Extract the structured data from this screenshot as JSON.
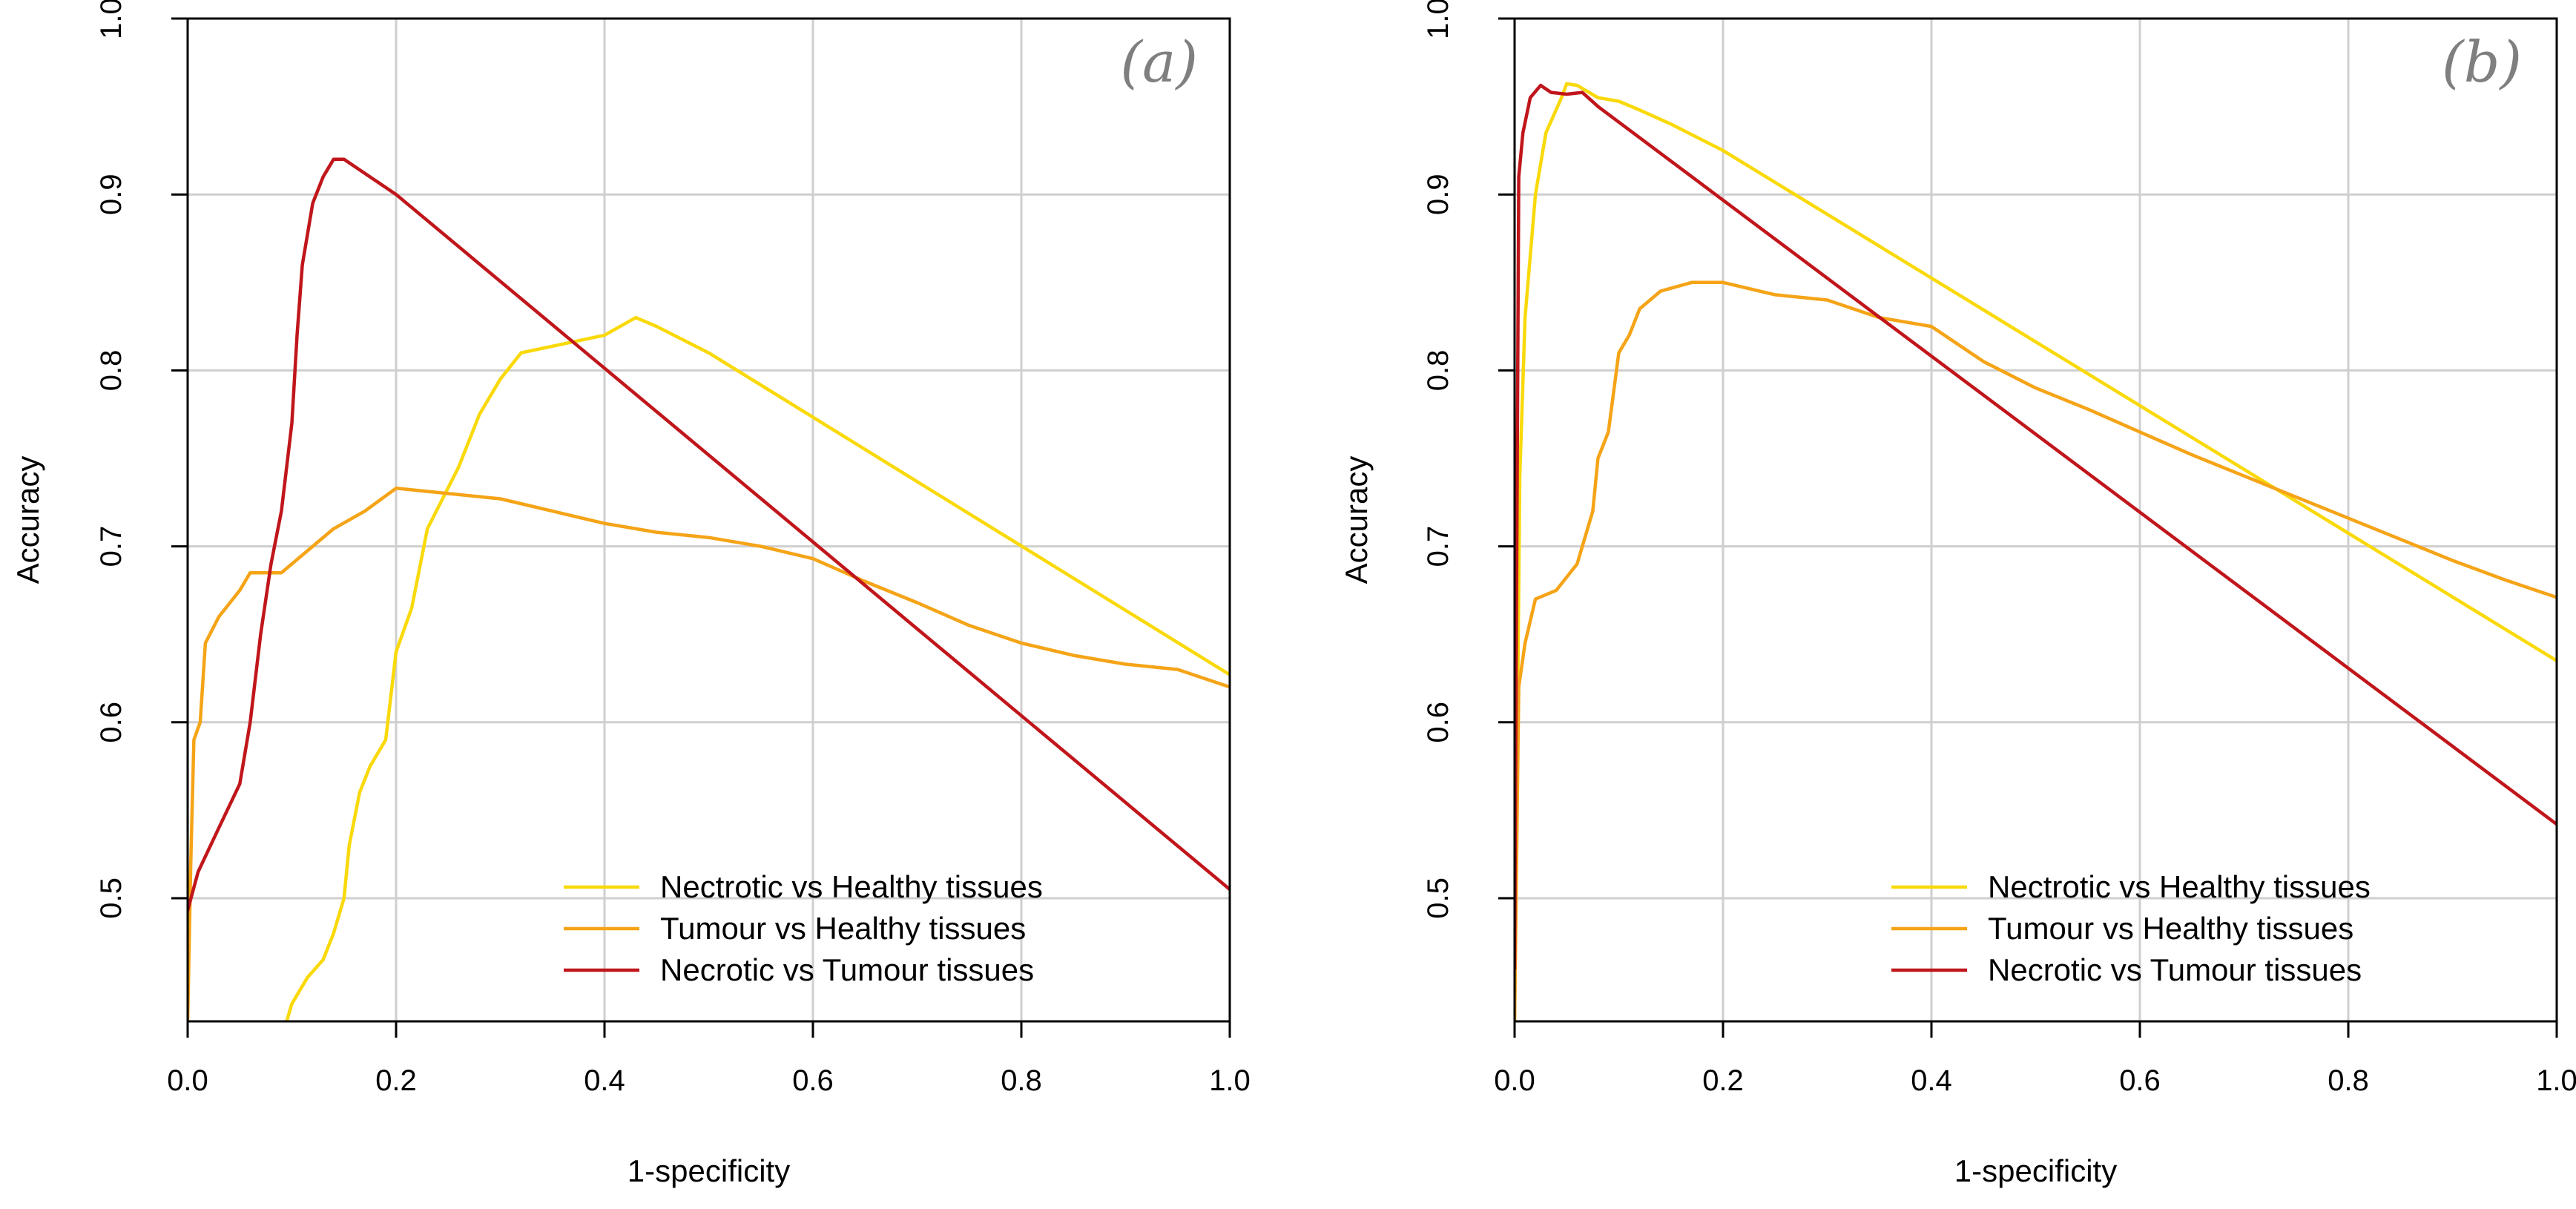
{
  "chart_data": [
    {
      "type": "line",
      "panel_label": "(a)",
      "title": "",
      "xlabel": "1-specificity",
      "ylabel": "Accuracy",
      "xlim": [
        0.0,
        1.0
      ],
      "ylim": [
        0.43,
        1.0
      ],
      "xticks": [
        "0.0",
        "0.2",
        "0.4",
        "0.6",
        "0.8",
        "1.0"
      ],
      "yticks": [
        "0.5",
        "0.6",
        "0.7",
        "0.8",
        "0.9",
        "1.0"
      ],
      "grid": true,
      "legend_position": "bottom-right",
      "series": [
        {
          "name": "Nectrotic vs Healthy tissues",
          "color": "#f9d90a",
          "points": [
            [
              0.095,
              0.43
            ],
            [
              0.1,
              0.44
            ],
            [
              0.115,
              0.455
            ],
            [
              0.13,
              0.465
            ],
            [
              0.14,
              0.48
            ],
            [
              0.15,
              0.5
            ],
            [
              0.155,
              0.53
            ],
            [
              0.165,
              0.56
            ],
            [
              0.175,
              0.575
            ],
            [
              0.19,
              0.59
            ],
            [
              0.2,
              0.64
            ],
            [
              0.215,
              0.665
            ],
            [
              0.23,
              0.71
            ],
            [
              0.26,
              0.745
            ],
            [
              0.28,
              0.775
            ],
            [
              0.3,
              0.795
            ],
            [
              0.32,
              0.81
            ],
            [
              0.36,
              0.815
            ],
            [
              0.4,
              0.82
            ],
            [
              0.43,
              0.83
            ],
            [
              0.45,
              0.825
            ],
            [
              0.5,
              0.81
            ],
            [
              1.0,
              0.627
            ]
          ]
        },
        {
          "name": "Tumour vs Healthy tissues",
          "color": "#f5a417",
          "points": [
            [
              0.0,
              0.43
            ],
            [
              0.003,
              0.52
            ],
            [
              0.006,
              0.59
            ],
            [
              0.012,
              0.6
            ],
            [
              0.017,
              0.645
            ],
            [
              0.03,
              0.66
            ],
            [
              0.05,
              0.675
            ],
            [
              0.06,
              0.685
            ],
            [
              0.09,
              0.685
            ],
            [
              0.11,
              0.695
            ],
            [
              0.14,
              0.71
            ],
            [
              0.17,
              0.72
            ],
            [
              0.2,
              0.733
            ],
            [
              0.25,
              0.73
            ],
            [
              0.3,
              0.727
            ],
            [
              0.35,
              0.72
            ],
            [
              0.4,
              0.713
            ],
            [
              0.45,
              0.708
            ],
            [
              0.5,
              0.705
            ],
            [
              0.55,
              0.7
            ],
            [
              0.6,
              0.693
            ],
            [
              0.65,
              0.68
            ],
            [
              0.7,
              0.668
            ],
            [
              0.75,
              0.655
            ],
            [
              0.8,
              0.645
            ],
            [
              0.85,
              0.638
            ],
            [
              0.9,
              0.633
            ],
            [
              0.95,
              0.63
            ],
            [
              1.0,
              0.62
            ]
          ]
        },
        {
          "name": "Necrotic vs Tumour tissues",
          "color": "#c0161b",
          "points": [
            [
              0.0,
              0.493
            ],
            [
              0.01,
              0.515
            ],
            [
              0.03,
              0.54
            ],
            [
              0.05,
              0.565
            ],
            [
              0.06,
              0.6
            ],
            [
              0.07,
              0.65
            ],
            [
              0.08,
              0.69
            ],
            [
              0.09,
              0.72
            ],
            [
              0.1,
              0.77
            ],
            [
              0.105,
              0.82
            ],
            [
              0.11,
              0.86
            ],
            [
              0.12,
              0.895
            ],
            [
              0.13,
              0.91
            ],
            [
              0.14,
              0.92
            ],
            [
              0.15,
              0.92
            ],
            [
              0.2,
              0.9
            ],
            [
              1.0,
              0.505
            ]
          ]
        }
      ]
    },
    {
      "type": "line",
      "panel_label": "(b)",
      "title": "",
      "xlabel": "1-specificity",
      "ylabel": "Accuracy",
      "xlim": [
        0.0,
        1.0
      ],
      "ylim": [
        0.43,
        1.0
      ],
      "xticks": [
        "0.0",
        "0.2",
        "0.4",
        "0.6",
        "0.8",
        "1.0"
      ],
      "yticks": [
        "0.5",
        "0.6",
        "0.7",
        "0.8",
        "0.9",
        "1.0"
      ],
      "grid": true,
      "legend_position": "bottom-right",
      "series": [
        {
          "name": "Nectrotic vs Healthy tissues",
          "color": "#f9d90a",
          "points": [
            [
              0.0,
              0.43
            ],
            [
              0.005,
              0.74
            ],
            [
              0.01,
              0.83
            ],
            [
              0.02,
              0.9
            ],
            [
              0.03,
              0.935
            ],
            [
              0.045,
              0.955
            ],
            [
              0.05,
              0.963
            ],
            [
              0.06,
              0.962
            ],
            [
              0.08,
              0.955
            ],
            [
              0.1,
              0.953
            ],
            [
              0.12,
              0.948
            ],
            [
              0.15,
              0.94
            ],
            [
              0.2,
              0.925
            ],
            [
              1.0,
              0.635
            ]
          ]
        },
        {
          "name": "Tumour vs Healthy tissues",
          "color": "#f5a417",
          "points": [
            [
              0.0,
              0.43
            ],
            [
              0.004,
              0.62
            ],
            [
              0.01,
              0.645
            ],
            [
              0.02,
              0.67
            ],
            [
              0.04,
              0.675
            ],
            [
              0.06,
              0.69
            ],
            [
              0.075,
              0.72
            ],
            [
              0.08,
              0.75
            ],
            [
              0.09,
              0.765
            ],
            [
              0.1,
              0.81
            ],
            [
              0.11,
              0.82
            ],
            [
              0.12,
              0.835
            ],
            [
              0.14,
              0.845
            ],
            [
              0.17,
              0.85
            ],
            [
              0.2,
              0.85
            ],
            [
              0.25,
              0.843
            ],
            [
              0.3,
              0.84
            ],
            [
              0.35,
              0.83
            ],
            [
              0.4,
              0.825
            ],
            [
              0.45,
              0.805
            ],
            [
              0.5,
              0.79
            ],
            [
              0.55,
              0.778
            ],
            [
              0.6,
              0.765
            ],
            [
              0.65,
              0.752
            ],
            [
              0.7,
              0.74
            ],
            [
              0.75,
              0.728
            ],
            [
              0.8,
              0.716
            ],
            [
              0.85,
              0.704
            ],
            [
              0.9,
              0.692
            ],
            [
              0.95,
              0.681
            ],
            [
              1.0,
              0.671
            ]
          ]
        },
        {
          "name": "Necrotic vs Tumour tissues",
          "color": "#c0161b",
          "points": [
            [
              0.0,
              0.46
            ],
            [
              0.004,
              0.91
            ],
            [
              0.008,
              0.935
            ],
            [
              0.015,
              0.955
            ],
            [
              0.025,
              0.962
            ],
            [
              0.035,
              0.958
            ],
            [
              0.05,
              0.957
            ],
            [
              0.065,
              0.958
            ],
            [
              0.08,
              0.95
            ],
            [
              1.0,
              0.542
            ]
          ]
        }
      ]
    }
  ]
}
